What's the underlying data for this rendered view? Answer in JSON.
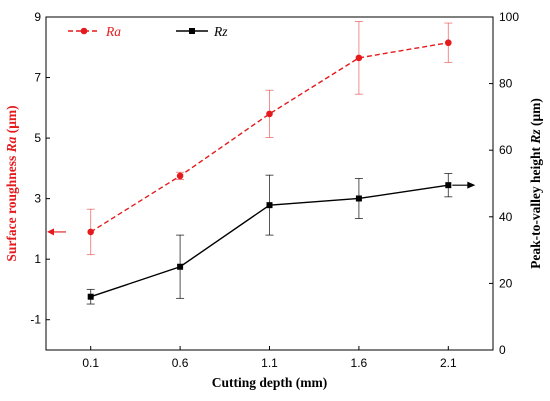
{
  "chart_data": {
    "type": "line",
    "x_label": "Cutting depth (mm)",
    "categories": [
      "0.1",
      "0.6",
      "1.1",
      "1.6",
      "2.1"
    ],
    "y_left": {
      "label_prefix": "Surface roughness ",
      "label_var": "Ra",
      "label_suffix": " (μm)",
      "range": [
        -2,
        9
      ],
      "ticks": [
        -1,
        1,
        3,
        5,
        7,
        9
      ],
      "color": "#e41a1c"
    },
    "y_right": {
      "label_prefix": "Peak-to-valley height ",
      "label_var": "Rz",
      "label_suffix": " (μm)",
      "range": [
        0,
        100
      ],
      "ticks": [
        0,
        20,
        40,
        60,
        80,
        100
      ],
      "color": "#000000"
    },
    "series": [
      {
        "name": "Ra",
        "axis": "left",
        "style": "dashed",
        "marker": "circle",
        "color": "#e41a1c",
        "values": [
          1.9,
          3.75,
          5.8,
          7.65,
          8.15
        ],
        "errors": [
          0.75,
          0.12,
          0.78,
          1.2,
          0.65
        ]
      },
      {
        "name": "Rz",
        "axis": "right",
        "style": "solid",
        "marker": "square",
        "color": "#000000",
        "values": [
          16,
          25,
          43.5,
          45.5,
          49.5
        ],
        "errors": [
          2.2,
          9.5,
          9,
          6,
          3.5
        ]
      }
    ],
    "legend": {
      "position": "top-left",
      "entries": [
        "Ra",
        "Rz"
      ]
    },
    "grid": false
  }
}
